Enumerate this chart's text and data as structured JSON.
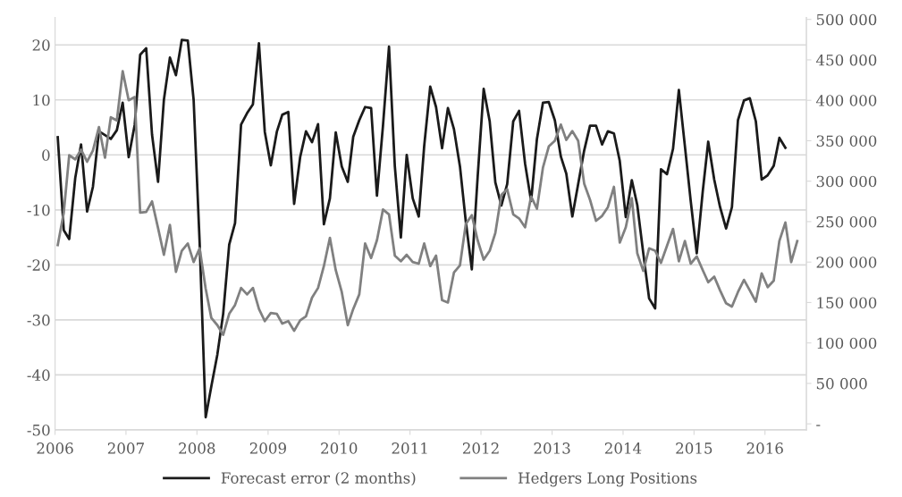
{
  "chart_data": {
    "type": "line",
    "x": [
      "2006-01-15",
      "2006-02-15",
      "2006-03-15",
      "2006-04-15",
      "2006-05-15",
      "2006-06-15",
      "2006-07-15",
      "2006-08-15",
      "2006-09-15",
      "2006-10-15",
      "2006-11-15",
      "2006-12-15",
      "2007-01-15",
      "2007-02-15",
      "2007-03-15",
      "2007-04-15",
      "2007-05-15",
      "2007-06-15",
      "2007-07-15",
      "2007-08-15",
      "2007-09-15",
      "2007-10-15",
      "2007-11-15",
      "2007-12-15",
      "2008-01-15",
      "2008-02-15",
      "2008-03-15",
      "2008-04-15",
      "2008-05-15",
      "2008-06-15",
      "2008-07-15",
      "2008-08-15",
      "2008-09-15",
      "2008-10-15",
      "2008-11-15",
      "2008-12-15",
      "2009-01-15",
      "2009-02-15",
      "2009-03-15",
      "2009-04-15",
      "2009-05-15",
      "2009-06-15",
      "2009-07-15",
      "2009-08-15",
      "2009-09-15",
      "2009-10-15",
      "2009-11-15",
      "2009-12-15",
      "2010-01-15",
      "2010-02-15",
      "2010-03-15",
      "2010-04-15",
      "2010-05-15",
      "2010-06-15",
      "2010-07-15",
      "2010-08-15",
      "2010-09-15",
      "2010-10-15",
      "2010-11-15",
      "2010-12-15",
      "2011-01-15",
      "2011-02-15",
      "2011-03-15",
      "2011-04-15",
      "2011-05-15",
      "2011-06-15",
      "2011-07-15",
      "2011-08-15",
      "2011-09-15",
      "2011-10-15",
      "2011-11-15",
      "2011-12-15",
      "2012-01-15",
      "2012-02-15",
      "2012-03-15",
      "2012-04-15",
      "2012-05-15",
      "2012-06-15",
      "2012-07-15",
      "2012-08-15",
      "2012-09-15",
      "2012-10-15",
      "2012-11-15",
      "2012-12-15",
      "2013-01-15",
      "2013-02-15",
      "2013-03-15",
      "2013-04-15",
      "2013-05-15",
      "2013-06-15",
      "2013-07-15",
      "2013-08-15",
      "2013-09-15",
      "2013-10-15",
      "2013-11-15",
      "2013-12-15",
      "2014-01-15",
      "2014-02-15",
      "2014-03-15",
      "2014-04-15",
      "2014-05-15",
      "2014-06-15",
      "2014-07-15",
      "2014-08-15",
      "2014-09-15",
      "2014-10-15",
      "2014-11-15",
      "2014-12-15",
      "2015-01-15",
      "2015-02-15",
      "2015-03-15",
      "2015-04-15",
      "2015-05-15",
      "2015-06-15",
      "2015-07-15",
      "2015-08-15",
      "2015-09-15",
      "2015-10-15",
      "2015-11-15",
      "2015-12-15",
      "2016-01-15",
      "2016-02-15",
      "2016-03-15",
      "2016-04-15",
      "2016-05-15",
      "2016-06-15"
    ],
    "series": [
      {
        "name": "Forecast error (2 months)",
        "color": "#1a1a1a",
        "values": [
          3.2,
          -13.7,
          -15.3,
          -4.2,
          1.9,
          -10.3,
          -5.8,
          4.3,
          3.6,
          2.9,
          4.5,
          9.5,
          -0.4,
          5.5,
          18.2,
          19.4,
          3.7,
          -4.9,
          10,
          17.7,
          14.5,
          20.9,
          20.8,
          10,
          -16,
          -47.7,
          -42.1,
          -36.3,
          -28.9,
          -16.3,
          -12.4,
          5.5,
          7.6,
          9.2,
          20.3,
          4.2,
          -1.9,
          4.2,
          7.3,
          7.8,
          -8.9,
          -0.4,
          4.3,
          2.3,
          5.6,
          -12.6,
          -7.9,
          4.1,
          -2.1,
          -4.9,
          3.3,
          6.3,
          8.7,
          8.5,
          -7.4,
          5.3,
          19.7,
          -2.1,
          -15,
          0,
          -7.9,
          -11.2,
          1.6,
          12.4,
          8.7,
          1.2,
          8.5,
          4.7,
          -2.1,
          -12.1,
          -20.8,
          -4,
          12,
          6.1,
          -5,
          -9.2,
          -5.3,
          6.1,
          8,
          -1.6,
          -8.4,
          2.9,
          9.5,
          9.6,
          6.3,
          -0.3,
          -3.4,
          -11.2,
          -5.3,
          0.8,
          5.3,
          5.3,
          1.9,
          4.3,
          3.9,
          -1.1,
          -11.3,
          -4.6,
          -9.1,
          -17.9,
          -26.1,
          -27.9,
          -2.6,
          -3.5,
          1.1,
          11.8,
          1.6,
          -8.4,
          -17.9,
          -6.6,
          2.4,
          -4.5,
          -9.5,
          -13.4,
          -9.5,
          6.3,
          9.9,
          10.3,
          6.1,
          -4.5,
          -3.7,
          -2,
          3.1,
          1.3,
          null,
          null
        ]
      },
      {
        "name": "Hedgers Long Positions",
        "color": "#808080",
        "axis": "y2",
        "values": [
          221000,
          261000,
          332000,
          327000,
          339000,
          324000,
          338000,
          367000,
          329000,
          379000,
          375000,
          436000,
          400000,
          404000,
          261000,
          262000,
          275000,
          242000,
          209000,
          246000,
          188000,
          214000,
          223000,
          200000,
          217000,
          167000,
          131000,
          122000,
          110000,
          136000,
          147000,
          168000,
          160000,
          168000,
          142000,
          127000,
          137000,
          136000,
          124000,
          127000,
          115000,
          128000,
          133000,
          156000,
          168000,
          195000,
          230000,
          190000,
          163000,
          122000,
          142000,
          160000,
          223000,
          205000,
          227000,
          265000,
          259000,
          208000,
          201000,
          209000,
          200000,
          198000,
          223000,
          195000,
          208000,
          153000,
          150000,
          187000,
          196000,
          247000,
          258000,
          227000,
          203000,
          214000,
          236000,
          283000,
          290000,
          259000,
          254000,
          243000,
          281000,
          266000,
          317000,
          343000,
          350000,
          370000,
          351000,
          362000,
          350000,
          297000,
          277000,
          251000,
          257000,
          268000,
          293000,
          224000,
          243000,
          279000,
          211000,
          189000,
          217000,
          214000,
          199000,
          220000,
          241000,
          201000,
          226000,
          198000,
          207000,
          190000,
          175000,
          182000,
          165000,
          149000,
          145000,
          163000,
          178000,
          165000,
          151000,
          186000,
          169000,
          177000,
          226000,
          249000,
          200000,
          226000
        ]
      }
    ],
    "xlim": [
      "2006-01-01",
      "2016-08-01"
    ],
    "xticks": [
      "2006",
      "2007",
      "2008",
      "2009",
      "2010",
      "2011",
      "2012",
      "2013",
      "2014",
      "2015",
      "2016"
    ],
    "ylim": [
      -50,
      25
    ],
    "yticks": [
      -50,
      -40,
      -30,
      -20,
      -10,
      0,
      10,
      20
    ],
    "y2lim": [
      -7500,
      502500
    ],
    "y2ticks": [
      {
        "value": 0,
        "label": "-"
      },
      {
        "value": 50000,
        "label": "50 000"
      },
      {
        "value": 100000,
        "label": "100 000"
      },
      {
        "value": 150000,
        "label": "150 000"
      },
      {
        "value": 200000,
        "label": "200 000"
      },
      {
        "value": 250000,
        "label": "250 000"
      },
      {
        "value": 300000,
        "label": "300 000"
      },
      {
        "value": 350000,
        "label": "350 000"
      },
      {
        "value": 400000,
        "label": "400 000"
      },
      {
        "value": 450000,
        "label": "450 000"
      },
      {
        "value": 500000,
        "label": "500 000"
      }
    ],
    "grid": "y",
    "legend": "bottom",
    "marker": "none",
    "line_style": "solid"
  }
}
